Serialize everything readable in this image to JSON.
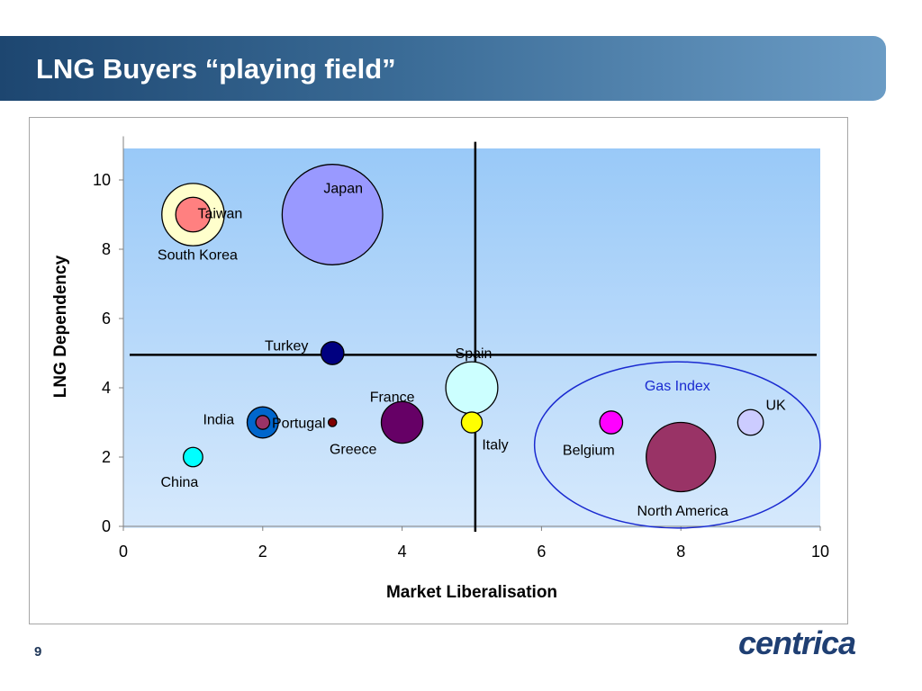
{
  "title": "LNG Buyers “playing field”",
  "page_number": "9",
  "logo_text": "centrica",
  "colors": {
    "title_bar_start": "#1d4670",
    "title_bar_end": "#6b9cc5",
    "plot_bg_top": "#99c9f8",
    "plot_bg_bottom": "#d6e9fc",
    "gas_index_ellipse": "#1a2ad0",
    "logo": "#1f3f73"
  },
  "chart_data": {
    "type": "scatter",
    "bubble": true,
    "xlabel": "Market Liberalisation",
    "ylabel": "LNG Dependency",
    "xlim": [
      0,
      10
    ],
    "ylim": [
      0,
      11
    ],
    "xticks": [
      "0",
      "2",
      "4",
      "6",
      "8",
      "10"
    ],
    "yticks": [
      "0",
      "2",
      "4",
      "6",
      "8",
      "10"
    ],
    "grid": false,
    "reference_lines": {
      "x": 5.05,
      "y": 4.95
    },
    "points": [
      {
        "label": "South Korea",
        "x": 1,
        "y": 9,
        "size": 0.9,
        "color": "#ffffcc"
      },
      {
        "label": "Taiwan",
        "x": 1,
        "y": 9,
        "size": 0.5,
        "color": "#ff8080"
      },
      {
        "label": "Japan",
        "x": 3,
        "y": 9,
        "size": 1.45,
        "color": "#9999ff"
      },
      {
        "label": "Turkey",
        "x": 3,
        "y": 5,
        "size": 0.33,
        "color": "#000080"
      },
      {
        "label": "India",
        "x": 2,
        "y": 3,
        "size": 0.45,
        "color": "#0066cc"
      },
      {
        "label": "Portugal",
        "x": 2,
        "y": 3,
        "size": 0.2,
        "color": "#993366"
      },
      {
        "label": "Greece",
        "x": 3,
        "y": 3,
        "size": 0.12,
        "color": "#800000"
      },
      {
        "label": "France",
        "x": 4,
        "y": 3,
        "size": 0.6,
        "color": "#660066"
      },
      {
        "label": "Spain",
        "x": 5,
        "y": 4,
        "size": 0.75,
        "color": "#ccffff"
      },
      {
        "label": "Italy",
        "x": 5,
        "y": 3,
        "size": 0.3,
        "color": "#ffff00"
      },
      {
        "label": "China",
        "x": 1,
        "y": 2,
        "size": 0.28,
        "color": "#00ffff"
      },
      {
        "label": "Belgium",
        "x": 7,
        "y": 3,
        "size": 0.33,
        "color": "#ff00ff"
      },
      {
        "label": "UK",
        "x": 9,
        "y": 3,
        "size": 0.37,
        "color": "#ccccff"
      },
      {
        "label": "North America",
        "x": 8,
        "y": 2,
        "size": 1.0,
        "color": "#993366"
      }
    ],
    "annotations": [
      {
        "label": "Gas Index",
        "type": "ellipse",
        "x_range": [
          5.9,
          10.0
        ],
        "y_range": [
          -0.05,
          4.75
        ]
      }
    ]
  }
}
